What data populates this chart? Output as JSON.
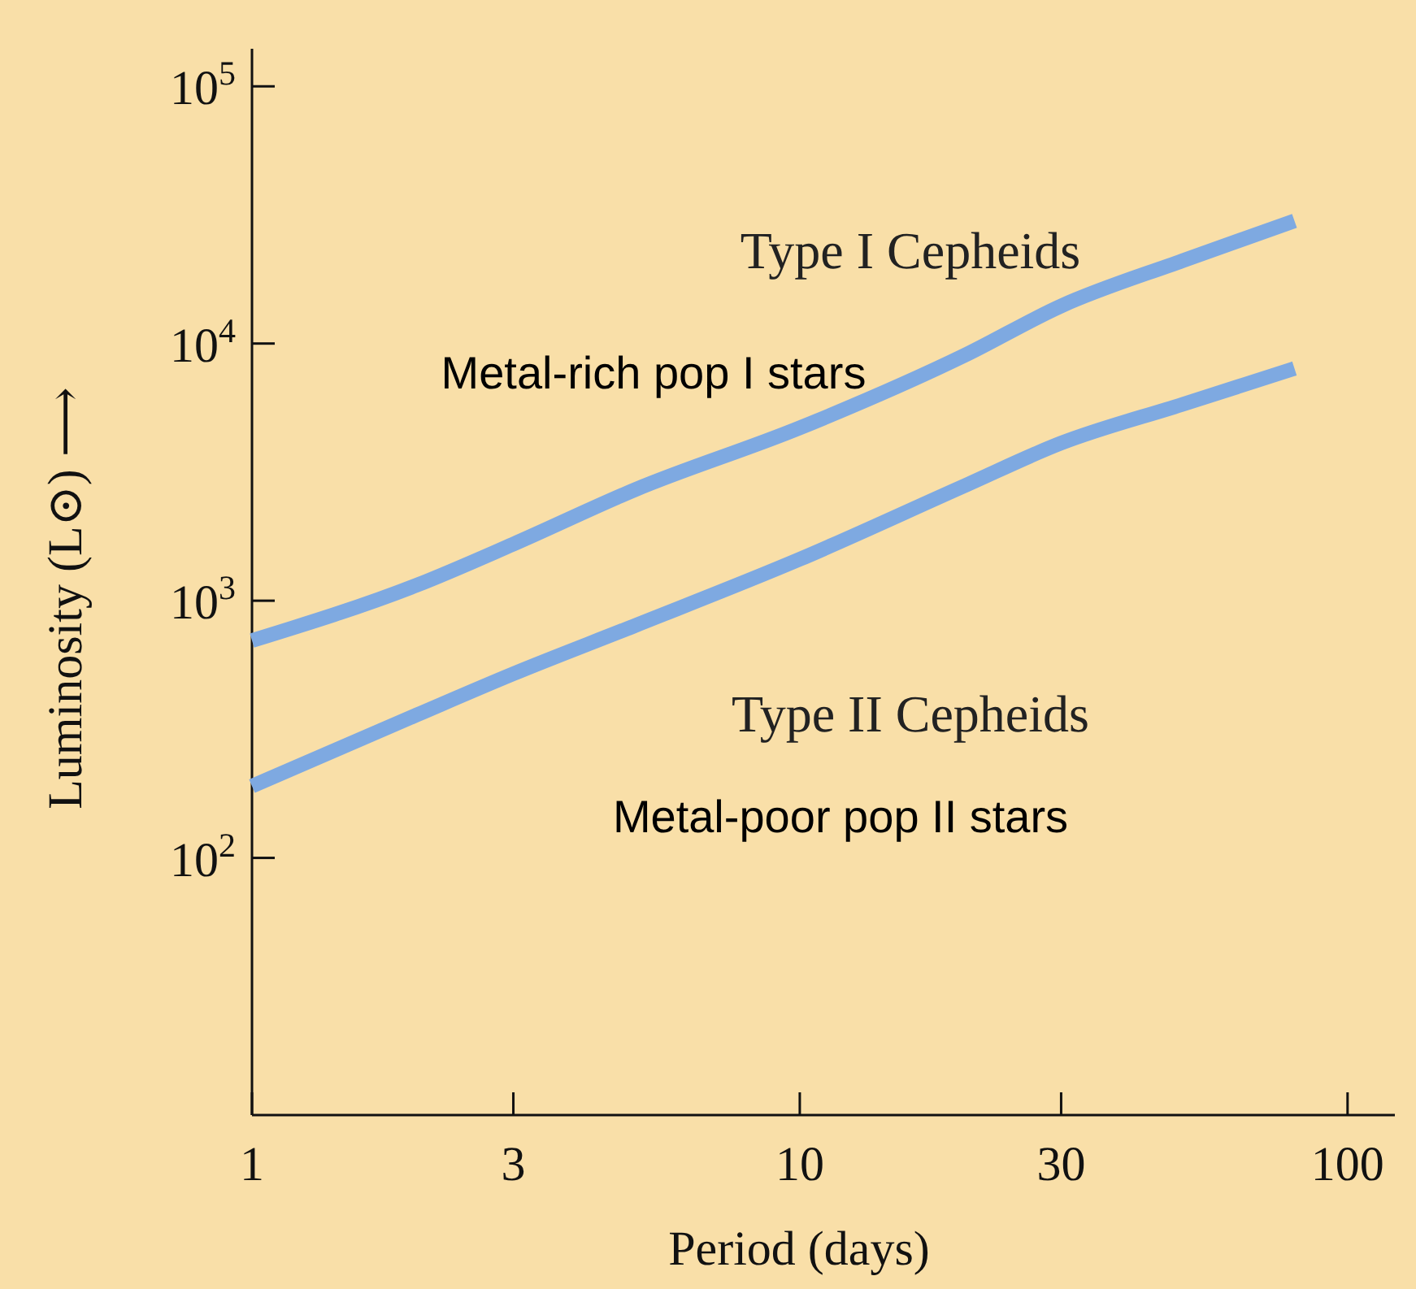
{
  "chart_data": {
    "type": "line",
    "xlabel": "Period (days)",
    "ylabel": "Luminosity (L⊙) ⟶",
    "log": "xy",
    "xlim": [
      1,
      122
    ],
    "ylim": [
      10,
      140000
    ],
    "xticks": [
      1,
      3,
      10,
      30,
      100
    ],
    "yticks": [
      {
        "value": 100,
        "label": "10$^{2}$"
      },
      {
        "value": 1000,
        "label": "10$^{3}$"
      },
      {
        "value": 10000,
        "label": "10$^{4}$"
      },
      {
        "value": 100000,
        "label": "10$^{5}$"
      }
    ],
    "grid": false,
    "marker": "none",
    "line_style": "solid",
    "series": [
      {
        "name": "Type I Cepheids",
        "color": "#7ea9e1",
        "x": [
          1,
          2,
          3,
          5,
          10,
          20,
          30,
          50,
          80
        ],
        "values": [
          700,
          1150,
          1660,
          2700,
          4700,
          9000,
          14000,
          21000,
          30000
        ]
      },
      {
        "name": "Type II Cepheids",
        "color": "#7ea9e1",
        "x": [
          1,
          2,
          3,
          5,
          10,
          20,
          30,
          50,
          80
        ],
        "values": [
          190,
          360,
          520,
          800,
          1450,
          2800,
          4100,
          5800,
          8000
        ]
      }
    ],
    "annotations": [
      "Metal-rich pop I stars",
      "Metal-poor pop II stars"
    ]
  }
}
